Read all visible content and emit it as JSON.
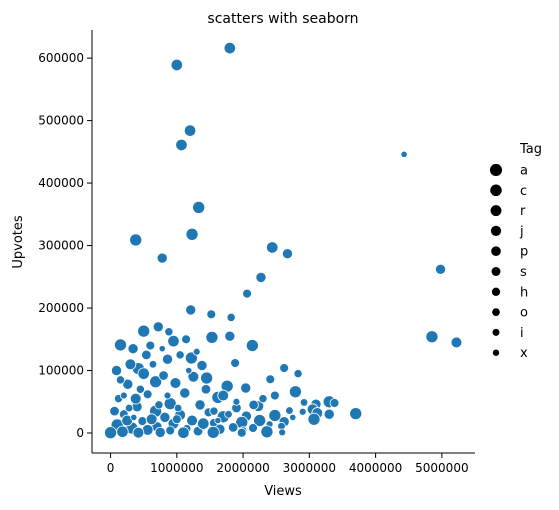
{
  "chart_data": {
    "type": "scatter",
    "title": "scatters with seaborn",
    "xlabel": "Views",
    "ylabel": "Upvotes",
    "xlim": [
      -280000,
      5500000
    ],
    "ylim": [
      -32000,
      645000
    ],
    "xticks": [
      0,
      1000000,
      2000000,
      3000000,
      4000000,
      5000000
    ],
    "xtick_labels": [
      "0",
      "1000000",
      "2000000",
      "3000000",
      "4000000",
      "5000000"
    ],
    "yticks": [
      0,
      100000,
      200000,
      300000,
      400000,
      500000,
      600000
    ],
    "ytick_labels": [
      "0",
      "100000",
      "200000",
      "300000",
      "400000",
      "500000",
      "600000"
    ],
    "grid": false,
    "marker_color": "#1f77b4",
    "legend": {
      "title": "Tag",
      "placement": "right",
      "entries": [
        {
          "label": "a",
          "size_rank": 10
        },
        {
          "label": "c",
          "size_rank": 9
        },
        {
          "label": "r",
          "size_rank": 8
        },
        {
          "label": "j",
          "size_rank": 7
        },
        {
          "label": "p",
          "size_rank": 6
        },
        {
          "label": "s",
          "size_rank": 5
        },
        {
          "label": "h",
          "size_rank": 4
        },
        {
          "label": "o",
          "size_rank": 3
        },
        {
          "label": "i",
          "size_rank": 2
        },
        {
          "label": "x",
          "size_rank": 1
        }
      ]
    },
    "points": [
      {
        "x": 1800000,
        "y": 616000,
        "tag": "c"
      },
      {
        "x": 1000000,
        "y": 589000,
        "tag": "c"
      },
      {
        "x": 1200000,
        "y": 484000,
        "tag": "c"
      },
      {
        "x": 1070000,
        "y": 461000,
        "tag": "c"
      },
      {
        "x": 4430000,
        "y": 446000,
        "tag": "x"
      },
      {
        "x": 1330000,
        "y": 361000,
        "tag": "a"
      },
      {
        "x": 1230000,
        "y": 318000,
        "tag": "a"
      },
      {
        "x": 380000,
        "y": 309000,
        "tag": "a"
      },
      {
        "x": 2440000,
        "y": 297000,
        "tag": "c"
      },
      {
        "x": 2670000,
        "y": 287000,
        "tag": "j"
      },
      {
        "x": 780000,
        "y": 280000,
        "tag": "j"
      },
      {
        "x": 4980000,
        "y": 262000,
        "tag": "j"
      },
      {
        "x": 2270000,
        "y": 249000,
        "tag": "j"
      },
      {
        "x": 2060000,
        "y": 223000,
        "tag": "s"
      },
      {
        "x": 1210000,
        "y": 197000,
        "tag": "j"
      },
      {
        "x": 1520000,
        "y": 190000,
        "tag": "s"
      },
      {
        "x": 1820000,
        "y": 185000,
        "tag": "h"
      },
      {
        "x": 720000,
        "y": 170000,
        "tag": "j"
      },
      {
        "x": 500000,
        "y": 163000,
        "tag": "a"
      },
      {
        "x": 880000,
        "y": 162000,
        "tag": "h"
      },
      {
        "x": 1800000,
        "y": 155000,
        "tag": "j"
      },
      {
        "x": 4850000,
        "y": 154000,
        "tag": "a"
      },
      {
        "x": 1530000,
        "y": 153000,
        "tag": "a"
      },
      {
        "x": 1140000,
        "y": 150000,
        "tag": "s"
      },
      {
        "x": 950000,
        "y": 147000,
        "tag": "c"
      },
      {
        "x": 5220000,
        "y": 145000,
        "tag": "r"
      },
      {
        "x": 150000,
        "y": 141000,
        "tag": "a"
      },
      {
        "x": 2140000,
        "y": 140000,
        "tag": "a"
      },
      {
        "x": 340000,
        "y": 135000,
        "tag": "j"
      },
      {
        "x": 1050000,
        "y": 125000,
        "tag": "h"
      },
      {
        "x": 1220000,
        "y": 120000,
        "tag": "a"
      },
      {
        "x": 860000,
        "y": 118000,
        "tag": "j"
      },
      {
        "x": 1880000,
        "y": 112000,
        "tag": "s"
      },
      {
        "x": 1380000,
        "y": 108000,
        "tag": "j"
      },
      {
        "x": 2620000,
        "y": 104000,
        "tag": "s"
      },
      {
        "x": 420000,
        "y": 103000,
        "tag": "a"
      },
      {
        "x": 2830000,
        "y": 95000,
        "tag": "h"
      },
      {
        "x": 1450000,
        "y": 88000,
        "tag": "a"
      },
      {
        "x": 2410000,
        "y": 86000,
        "tag": "s"
      },
      {
        "x": 680000,
        "y": 82000,
        "tag": "a"
      },
      {
        "x": 260000,
        "y": 78000,
        "tag": "j"
      },
      {
        "x": 1760000,
        "y": 75000,
        "tag": "a"
      },
      {
        "x": 2040000,
        "y": 72000,
        "tag": "j"
      },
      {
        "x": 2790000,
        "y": 66000,
        "tag": "a"
      },
      {
        "x": 1120000,
        "y": 64000,
        "tag": "j"
      },
      {
        "x": 560000,
        "y": 62000,
        "tag": "s"
      },
      {
        "x": 2480000,
        "y": 60000,
        "tag": "s"
      },
      {
        "x": 1620000,
        "y": 57000,
        "tag": "a"
      },
      {
        "x": 120000,
        "y": 55000,
        "tag": "h"
      },
      {
        "x": 3300000,
        "y": 50000,
        "tag": "a"
      },
      {
        "x": 2920000,
        "y": 49000,
        "tag": "o"
      },
      {
        "x": 3380000,
        "y": 48000,
        "tag": "s"
      },
      {
        "x": 900000,
        "y": 47000,
        "tag": "a"
      },
      {
        "x": 3100000,
        "y": 46000,
        "tag": "j"
      },
      {
        "x": 1350000,
        "y": 45000,
        "tag": "j"
      },
      {
        "x": 2230000,
        "y": 43000,
        "tag": "r"
      },
      {
        "x": 400000,
        "y": 42000,
        "tag": "j"
      },
      {
        "x": 1900000,
        "y": 40000,
        "tag": "p"
      },
      {
        "x": 3050000,
        "y": 38000,
        "tag": "r"
      },
      {
        "x": 2700000,
        "y": 36000,
        "tag": "o"
      },
      {
        "x": 680000,
        "y": 35000,
        "tag": "a"
      },
      {
        "x": 2900000,
        "y": 34000,
        "tag": "i"
      },
      {
        "x": 1480000,
        "y": 33000,
        "tag": "s"
      },
      {
        "x": 3120000,
        "y": 32000,
        "tag": "r"
      },
      {
        "x": 3700000,
        "y": 31000,
        "tag": "a"
      },
      {
        "x": 200000,
        "y": 30000,
        "tag": "s"
      },
      {
        "x": 3300000,
        "y": 30000,
        "tag": "j"
      },
      {
        "x": 1050000,
        "y": 29000,
        "tag": "r"
      },
      {
        "x": 2480000,
        "y": 28000,
        "tag": "a"
      },
      {
        "x": 2050000,
        "y": 27000,
        "tag": "j"
      },
      {
        "x": 1700000,
        "y": 26000,
        "tag": "a"
      },
      {
        "x": 820000,
        "y": 25000,
        "tag": "j"
      },
      {
        "x": 3070000,
        "y": 22000,
        "tag": "a"
      },
      {
        "x": 2250000,
        "y": 20000,
        "tag": "a"
      },
      {
        "x": 1230000,
        "y": 20000,
        "tag": "r"
      },
      {
        "x": 480000,
        "y": 19000,
        "tag": "s"
      },
      {
        "x": 2620000,
        "y": 18000,
        "tag": "j"
      },
      {
        "x": 1980000,
        "y": 17000,
        "tag": "a"
      },
      {
        "x": 1560000,
        "y": 16000,
        "tag": "s"
      },
      {
        "x": 950000,
        "y": 15000,
        "tag": "r"
      },
      {
        "x": 2400000,
        "y": 14000,
        "tag": "i"
      },
      {
        "x": 100000,
        "y": 13000,
        "tag": "a"
      },
      {
        "x": 1380000,
        "y": 12000,
        "tag": "r"
      },
      {
        "x": 2580000,
        "y": 11000,
        "tag": "o"
      },
      {
        "x": 700000,
        "y": 10000,
        "tag": "j"
      },
      {
        "x": 1850000,
        "y": 9000,
        "tag": "p"
      },
      {
        "x": 2150000,
        "y": 8000,
        "tag": "s"
      },
      {
        "x": 320000,
        "y": 8000,
        "tag": "a"
      },
      {
        "x": 1150000,
        "y": 7000,
        "tag": "h"
      },
      {
        "x": 1650000,
        "y": 6000,
        "tag": "j"
      },
      {
        "x": 560000,
        "y": 5000,
        "tag": "r"
      },
      {
        "x": 2000000,
        "y": 4000,
        "tag": "o"
      },
      {
        "x": 900000,
        "y": 4000,
        "tag": "s"
      },
      {
        "x": 1320000,
        "y": 3000,
        "tag": "p"
      },
      {
        "x": 2360000,
        "y": 2000,
        "tag": "a"
      },
      {
        "x": 180000,
        "y": 2000,
        "tag": "c"
      },
      {
        "x": 2590000,
        "y": 1000,
        "tag": "i"
      },
      {
        "x": 1550000,
        "y": 1000,
        "tag": "a"
      },
      {
        "x": 750000,
        "y": 1000,
        "tag": "j"
      },
      {
        "x": 1980000,
        "y": 500,
        "tag": "s"
      },
      {
        "x": 0,
        "y": 500,
        "tag": "a"
      },
      {
        "x": 420000,
        "y": 500,
        "tag": "r"
      },
      {
        "x": 1100000,
        "y": 500,
        "tag": "c"
      },
      {
        "x": 250000,
        "y": 20000,
        "tag": "r"
      },
      {
        "x": 620000,
        "y": 22000,
        "tag": "r"
      },
      {
        "x": 380000,
        "y": 55000,
        "tag": "r"
      },
      {
        "x": 980000,
        "y": 80000,
        "tag": "r"
      },
      {
        "x": 300000,
        "y": 110000,
        "tag": "r"
      },
      {
        "x": 1250000,
        "y": 90000,
        "tag": "r"
      },
      {
        "x": 1700000,
        "y": 60000,
        "tag": "r"
      },
      {
        "x": 60000,
        "y": 35000,
        "tag": "p"
      },
      {
        "x": 540000,
        "y": 125000,
        "tag": "p"
      },
      {
        "x": 800000,
        "y": 92000,
        "tag": "p"
      },
      {
        "x": 1440000,
        "y": 70000,
        "tag": "p"
      },
      {
        "x": 2160000,
        "y": 45000,
        "tag": "p"
      },
      {
        "x": 150000,
        "y": 85000,
        "tag": "h"
      },
      {
        "x": 450000,
        "y": 70000,
        "tag": "h"
      },
      {
        "x": 730000,
        "y": 45000,
        "tag": "h"
      },
      {
        "x": 1560000,
        "y": 35000,
        "tag": "h"
      },
      {
        "x": 2300000,
        "y": 55000,
        "tag": "h"
      },
      {
        "x": 280000,
        "y": 40000,
        "tag": "o"
      },
      {
        "x": 640000,
        "y": 110000,
        "tag": "o"
      },
      {
        "x": 1020000,
        "y": 40000,
        "tag": "o"
      },
      {
        "x": 1780000,
        "y": 30000,
        "tag": "o"
      },
      {
        "x": 200000,
        "y": 60000,
        "tag": "i"
      },
      {
        "x": 860000,
        "y": 60000,
        "tag": "i"
      },
      {
        "x": 1300000,
        "y": 130000,
        "tag": "i"
      },
      {
        "x": 1900000,
        "y": 50000,
        "tag": "i"
      },
      {
        "x": 350000,
        "y": 25000,
        "tag": "x"
      },
      {
        "x": 780000,
        "y": 135000,
        "tag": "x"
      },
      {
        "x": 1180000,
        "y": 100000,
        "tag": "x"
      },
      {
        "x": 1620000,
        "y": 20000,
        "tag": "x"
      },
      {
        "x": 2750000,
        "y": 25000,
        "tag": "x"
      },
      {
        "x": 500000,
        "y": 95000,
        "tag": "c"
      },
      {
        "x": 1400000,
        "y": 15000,
        "tag": "c"
      },
      {
        "x": 600000,
        "y": 140000,
        "tag": "s"
      },
      {
        "x": 90000,
        "y": 100000,
        "tag": "j"
      },
      {
        "x": 1000000,
        "y": 22000,
        "tag": "s"
      }
    ]
  }
}
